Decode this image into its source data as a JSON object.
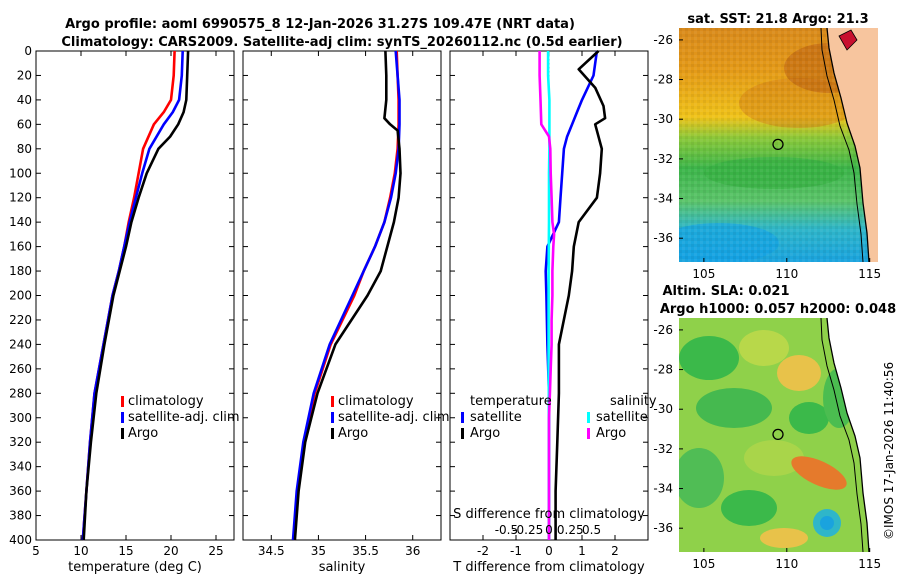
{
  "header": {
    "title_line1": "Argo profile: aoml 6990575_8 12-Jan-2026 31.27S 109.47E (NRT data)",
    "title_line2": "Climatology: CARS2009. Satellite-adj clim: synTS_20260112.nc (0.5d earlier)"
  },
  "credit": "©IMOS 17-Jan-2026 11:40:56",
  "colors": {
    "clim": "#ff0000",
    "sat": "#0000ff",
    "argo": "#000000",
    "sal_sat": "#00ffff",
    "sal_argo": "#ff00ff"
  },
  "chart_data": [
    {
      "type": "line",
      "id": "temperature",
      "xlabel": "temperature (deg C)",
      "ylabel": "",
      "xlim": [
        5,
        27
      ],
      "ylim": [
        400,
        0
      ],
      "xticks": [
        5,
        10,
        15,
        20,
        25
      ],
      "yticks": [
        0,
        20,
        40,
        60,
        80,
        100,
        120,
        140,
        160,
        180,
        200,
        220,
        240,
        260,
        280,
        300,
        320,
        340,
        360,
        380,
        400
      ],
      "legend": {
        "position": "bottom-right",
        "entries": [
          "climatology",
          "satellite-adj. clim",
          "Argo"
        ]
      },
      "series": [
        {
          "name": "climatology",
          "color": "#ff0000",
          "depth": [
            0,
            20,
            40,
            50,
            60,
            80,
            100,
            120,
            140,
            160,
            180,
            200,
            240,
            280,
            320,
            360,
            400
          ],
          "values": [
            20.4,
            20.3,
            20.0,
            19.2,
            18.1,
            16.9,
            16.4,
            15.9,
            15.3,
            14.8,
            14.2,
            13.5,
            12.5,
            11.5,
            11.0,
            10.6,
            10.2
          ]
        },
        {
          "name": "satellite-adj. clim",
          "color": "#0000ff",
          "depth": [
            0,
            20,
            40,
            50,
            60,
            80,
            100,
            120,
            140,
            160,
            180,
            200,
            240,
            280,
            320,
            360,
            400
          ],
          "values": [
            21.3,
            21.2,
            20.9,
            20.2,
            19.2,
            17.6,
            16.8,
            16.1,
            15.4,
            14.8,
            14.2,
            13.5,
            12.5,
            11.5,
            11.0,
            10.6,
            10.2
          ]
        },
        {
          "name": "Argo",
          "color": "#000000",
          "depth": [
            0,
            20,
            40,
            50,
            60,
            70,
            80,
            100,
            120,
            140,
            160,
            180,
            200,
            240,
            280,
            320,
            360,
            400
          ],
          "values": [
            21.9,
            21.8,
            21.7,
            21.4,
            20.8,
            19.9,
            18.6,
            17.3,
            16.4,
            15.6,
            15.0,
            14.3,
            13.6,
            12.6,
            11.7,
            11.1,
            10.6,
            10.3
          ]
        }
      ]
    },
    {
      "type": "line",
      "id": "salinity",
      "xlabel": "salinity",
      "ylabel": "",
      "xlim": [
        34.2,
        36.3
      ],
      "ylim": [
        400,
        0
      ],
      "xticks": [
        34.5,
        35,
        35.5,
        36
      ],
      "legend": {
        "position": "bottom-right",
        "entries": [
          "climatology",
          "satellite-adj. clim",
          "Argo"
        ]
      },
      "series": [
        {
          "name": "climatology",
          "color": "#ff0000",
          "depth": [
            0,
            20,
            40,
            60,
            80,
            100,
            120,
            140,
            160,
            180,
            200,
            240,
            280,
            320,
            360,
            400
          ],
          "values": [
            35.83,
            35.84,
            35.85,
            35.85,
            35.84,
            35.81,
            35.76,
            35.7,
            35.6,
            35.48,
            35.38,
            35.13,
            34.96,
            34.85,
            34.78,
            34.74
          ]
        },
        {
          "name": "satellite-adj. clim",
          "color": "#0000ff",
          "depth": [
            0,
            20,
            40,
            60,
            80,
            100,
            120,
            140,
            160,
            180,
            200,
            240,
            280,
            320,
            360,
            400
          ],
          "values": [
            35.82,
            35.84,
            35.86,
            35.86,
            35.85,
            35.82,
            35.77,
            35.7,
            35.6,
            35.48,
            35.36,
            35.12,
            34.95,
            34.84,
            34.77,
            34.73
          ]
        },
        {
          "name": "Argo",
          "color": "#000000",
          "depth": [
            0,
            20,
            40,
            55,
            60,
            65,
            80,
            100,
            120,
            140,
            160,
            180,
            200,
            240,
            280,
            320,
            360,
            400
          ],
          "values": [
            35.71,
            35.72,
            35.72,
            35.7,
            35.76,
            35.84,
            35.86,
            35.87,
            35.85,
            35.8,
            35.73,
            35.66,
            35.52,
            35.18,
            34.99,
            34.86,
            34.79,
            34.75
          ]
        }
      ]
    },
    {
      "type": "line",
      "id": "difference",
      "xlabel": "T difference from climatology",
      "xlabel_top": "S difference from climatology",
      "xlim": [
        -3,
        3
      ],
      "ylim": [
        400,
        0
      ],
      "xticks": [
        -2,
        -1,
        0,
        1,
        2
      ],
      "xticks_top": [
        "-0.5",
        "-0.25",
        "0",
        "0.25",
        "0.5"
      ],
      "legend": {
        "position": "bottom",
        "headers": [
          "temperature",
          "salinity"
        ],
        "entries": [
          "satellite",
          "Argo",
          "satellite",
          "Argo"
        ]
      },
      "series": [
        {
          "name": "temperature satellite",
          "color": "#0000ff",
          "depth": [
            0,
            20,
            40,
            50,
            60,
            70,
            80,
            100,
            120,
            140,
            160,
            180,
            200,
            240,
            280,
            320,
            360,
            400
          ],
          "values": [
            1.45,
            1.35,
            1.0,
            0.85,
            0.7,
            0.55,
            0.45,
            0.4,
            0.35,
            0.3,
            -0.05,
            -0.1,
            -0.08,
            -0.05,
            0.0,
            0.0,
            0.0,
            0.0
          ]
        },
        {
          "name": "temperature Argo",
          "color": "#000000",
          "depth": [
            0,
            15,
            30,
            45,
            55,
            60,
            70,
            80,
            100,
            120,
            140,
            160,
            180,
            200,
            240,
            280,
            320,
            360,
            400
          ],
          "values": [
            1.5,
            0.9,
            1.4,
            1.65,
            1.7,
            1.4,
            1.5,
            1.6,
            1.55,
            1.45,
            0.9,
            0.75,
            0.7,
            0.6,
            0.3,
            0.3,
            0.25,
            0.2,
            0.2
          ]
        },
        {
          "name": "salinity satellite",
          "color": "#00ffff",
          "depth": [
            0,
            20,
            40,
            60,
            80,
            100,
            140,
            180,
            220,
            260,
            300,
            340,
            400
          ],
          "values": [
            -0.01,
            -0.01,
            0.005,
            0.005,
            0.005,
            0.0,
            0.0,
            -0.005,
            -0.005,
            -0.005,
            0.0,
            0.0,
            0.0
          ]
        },
        {
          "name": "salinity Argo",
          "color": "#ff00ff",
          "depth": [
            0,
            20,
            40,
            60,
            70,
            80,
            100,
            120,
            140,
            150,
            160,
            180,
            200,
            220,
            240,
            260,
            280,
            300,
            340,
            400
          ],
          "values": [
            -0.11,
            -0.11,
            -0.1,
            -0.09,
            0.0,
            0.015,
            0.02,
            0.03,
            0.04,
            0.06,
            0.05,
            0.04,
            0.04,
            0.03,
            0.03,
            0.02,
            0.01,
            0.0,
            0.0,
            0.0
          ]
        }
      ]
    },
    {
      "type": "heatmap",
      "id": "sst_map",
      "title": "sat. SST: 21.8 Argo: 21.3",
      "xlim": [
        103.5,
        115.5
      ],
      "ylim": [
        -37.2,
        -25.4
      ],
      "xticks": [
        105,
        110,
        115
      ],
      "yticks": [
        -26,
        -28,
        -30,
        -32,
        -34,
        -36
      ],
      "marker": {
        "lon": 109.47,
        "lat": -31.27
      }
    },
    {
      "type": "heatmap",
      "id": "sla_map",
      "title": "Altim. SLA: 0.021",
      "subtitle": "Argo h1000: 0.057 h2000: 0.048",
      "xlim": [
        103.5,
        115.5
      ],
      "ylim": [
        -37.2,
        -25.4
      ],
      "xticks": [
        105,
        110,
        115
      ],
      "yticks": [
        -26,
        -28,
        -30,
        -32,
        -34,
        -36
      ],
      "marker": {
        "lon": 109.47,
        "lat": -31.27
      }
    }
  ]
}
